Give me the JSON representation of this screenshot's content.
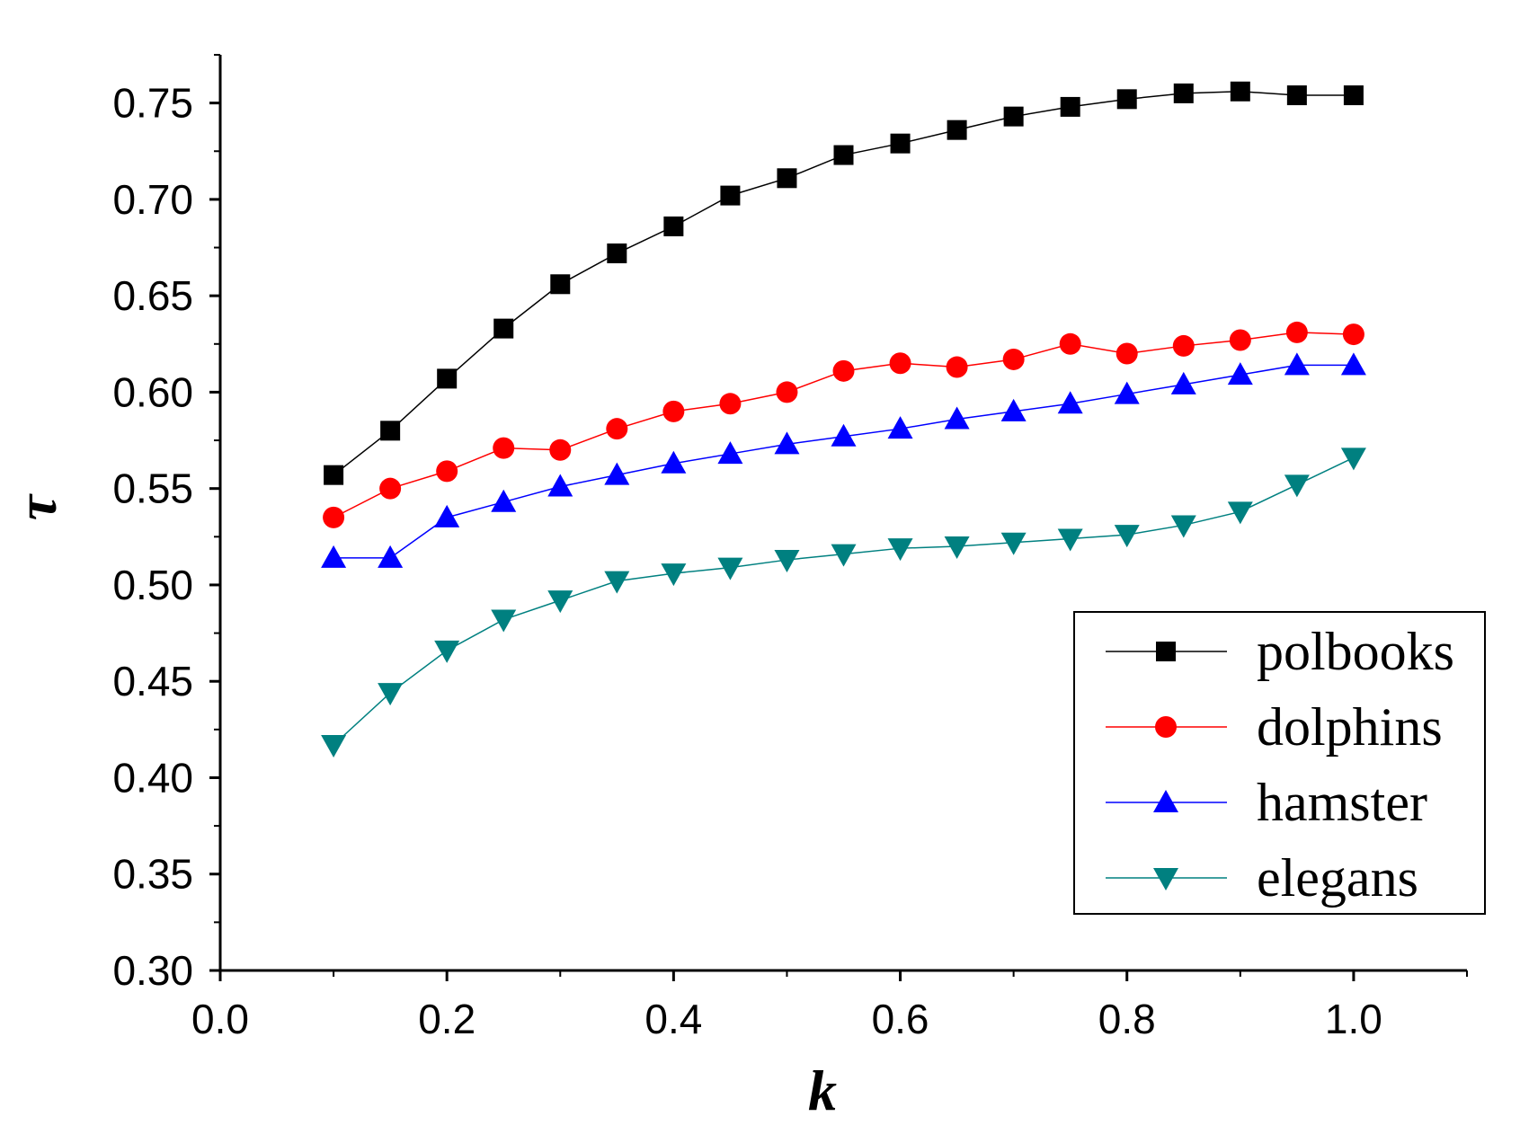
{
  "chart_data": {
    "type": "line",
    "title": "",
    "xlabel": "k",
    "ylabel": "τ",
    "xlim": [
      0.0,
      1.1
    ],
    "ylim": [
      0.3,
      0.775
    ],
    "xticks": [
      0.0,
      0.2,
      0.4,
      0.6,
      0.8,
      1.0
    ],
    "xtick_labels": [
      "0.0",
      "0.2",
      "0.4",
      "0.6",
      "0.8",
      "1.0"
    ],
    "yticks": [
      0.3,
      0.35,
      0.4,
      0.45,
      0.5,
      0.55,
      0.6,
      0.65,
      0.7,
      0.75
    ],
    "ytick_labels": [
      "0.30",
      "0.35",
      "0.40",
      "0.45",
      "0.50",
      "0.55",
      "0.60",
      "0.65",
      "0.70",
      "0.75"
    ],
    "grid": false,
    "legend_position": "bottom-right",
    "x": [
      0.1,
      0.15,
      0.2,
      0.25,
      0.3,
      0.35,
      0.4,
      0.45,
      0.5,
      0.55,
      0.6,
      0.65,
      0.7,
      0.75,
      0.8,
      0.85,
      0.9,
      0.95,
      1.0
    ],
    "series": [
      {
        "name": "polbooks",
        "color": "#000000",
        "marker": "square",
        "values": [
          0.557,
          0.58,
          0.607,
          0.633,
          0.656,
          0.672,
          0.686,
          0.702,
          0.711,
          0.723,
          0.729,
          0.736,
          0.743,
          0.748,
          0.752,
          0.755,
          0.756,
          0.754,
          0.754
        ]
      },
      {
        "name": "dolphins",
        "color": "#ff0000",
        "marker": "circle",
        "values": [
          0.535,
          0.55,
          0.559,
          0.571,
          0.57,
          0.581,
          0.59,
          0.594,
          0.6,
          0.611,
          0.615,
          0.613,
          0.617,
          0.625,
          0.62,
          0.624,
          0.627,
          0.631,
          0.63
        ]
      },
      {
        "name": "hamster",
        "color": "#0000ff",
        "marker": "triangle-up",
        "values": [
          0.514,
          0.514,
          0.535,
          0.543,
          0.551,
          0.557,
          0.563,
          0.568,
          0.573,
          0.577,
          0.581,
          0.586,
          0.59,
          0.594,
          0.599,
          0.604,
          0.609,
          0.614,
          0.614
        ]
      },
      {
        "name": "elegans",
        "color": "#008080",
        "marker": "triangle-down",
        "values": [
          0.417,
          0.444,
          0.466,
          0.482,
          0.492,
          0.502,
          0.506,
          0.509,
          0.513,
          0.516,
          0.519,
          0.52,
          0.522,
          0.524,
          0.526,
          0.531,
          0.538,
          0.552,
          0.566
        ]
      }
    ]
  }
}
